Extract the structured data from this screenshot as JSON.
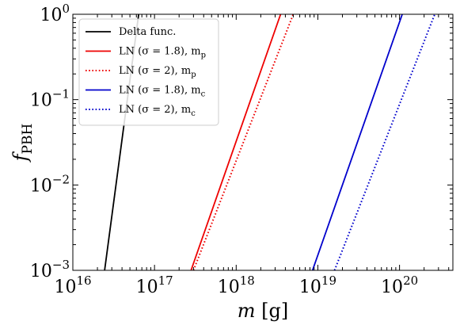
{
  "chart_data": {
    "type": "line",
    "xlabel": "m [g]",
    "ylabel": "f_PBH",
    "x_scale": "log",
    "y_scale": "log",
    "xlim": [
      1e+16,
      4.5e+20
    ],
    "ylim": [
      0.001,
      1
    ],
    "grid": false,
    "legend_position": "top-left",
    "x_ticks": [
      {
        "base": "10",
        "exp": "16",
        "value": 1e+16
      },
      {
        "base": "10",
        "exp": "17",
        "value": 1e+17
      },
      {
        "base": "10",
        "exp": "18",
        "value": 1e+18
      },
      {
        "base": "10",
        "exp": "19",
        "value": 1e+19
      },
      {
        "base": "10",
        "exp": "20",
        "value": 1e+20
      }
    ],
    "y_ticks": [
      {
        "base": "10",
        "exp": "−3",
        "value": 0.001
      },
      {
        "base": "10",
        "exp": "−2",
        "value": 0.01
      },
      {
        "base": "10",
        "exp": "−1",
        "value": 0.1
      },
      {
        "base": "10",
        "exp": "0",
        "value": 1
      }
    ],
    "series": [
      {
        "name": "Delta func.",
        "color": "#000000",
        "dash": "solid",
        "x": [
          2.45e+16,
          6.4e+16
        ],
        "y": [
          0.001,
          1
        ]
      },
      {
        "name": "LN (σ = 1.8), m_p",
        "color": "#ee0000",
        "dash": "solid",
        "x": [
          2.8e+17,
          3.5e+18
        ],
        "y": [
          0.001,
          1
        ]
      },
      {
        "name": "LN (σ = 2), m_p",
        "color": "#ee0000",
        "dash": "dotted",
        "x": [
          3e+17,
          5e+18
        ],
        "y": [
          0.001,
          1
        ]
      },
      {
        "name": "LN (σ = 1.8), m_c",
        "color": "#0000cc",
        "dash": "solid",
        "x": [
          8.6e+18,
          1.08e+20
        ],
        "y": [
          0.001,
          1
        ]
      },
      {
        "name": "LN (σ = 2), m_c",
        "color": "#0000cc",
        "dash": "dotted",
        "x": [
          1.6e+19,
          2.7e+20
        ],
        "y": [
          0.001,
          1
        ]
      }
    ]
  }
}
